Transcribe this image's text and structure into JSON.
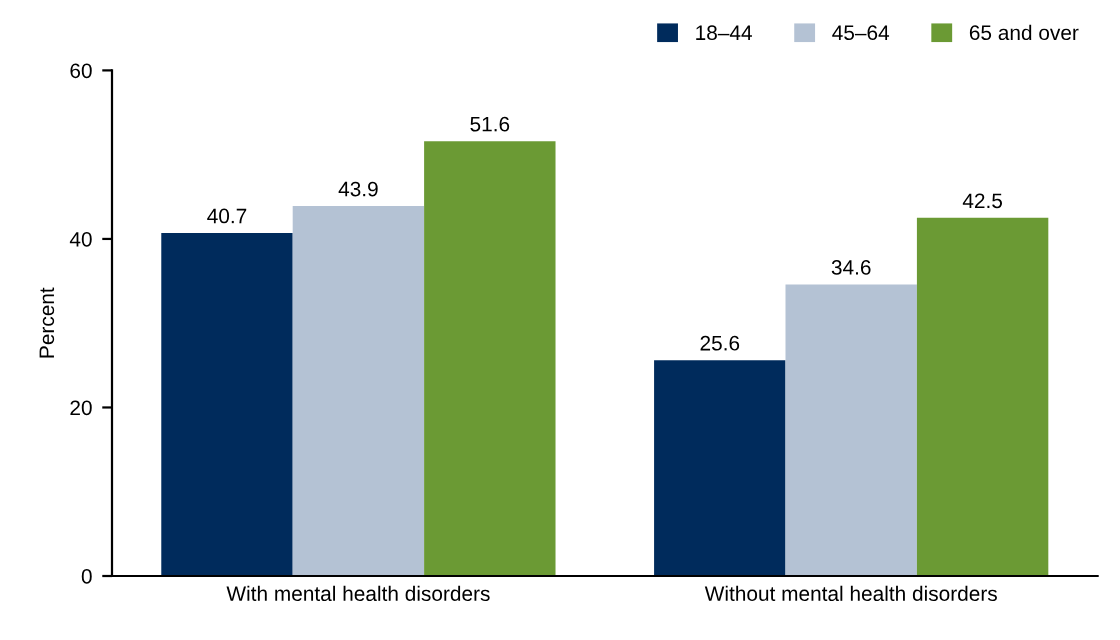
{
  "chart_data": {
    "type": "bar",
    "ylabel": "Percent",
    "categories": [
      "With mental health disorders",
      "Without mental health disorders"
    ],
    "series": [
      {
        "name": "18–44",
        "color": "#002b5c",
        "values": [
          40.7,
          25.6
        ]
      },
      {
        "name": "45–64",
        "color": "#b4c2d4",
        "values": [
          43.9,
          34.6
        ]
      },
      {
        "name": "65 and over",
        "color": "#6b9a34",
        "values": [
          51.6,
          42.5
        ]
      }
    ],
    "ylim": [
      0,
      60
    ],
    "yticks": [
      0,
      20,
      40,
      60
    ],
    "data_labels": true,
    "legend": "top right",
    "grid": false
  }
}
